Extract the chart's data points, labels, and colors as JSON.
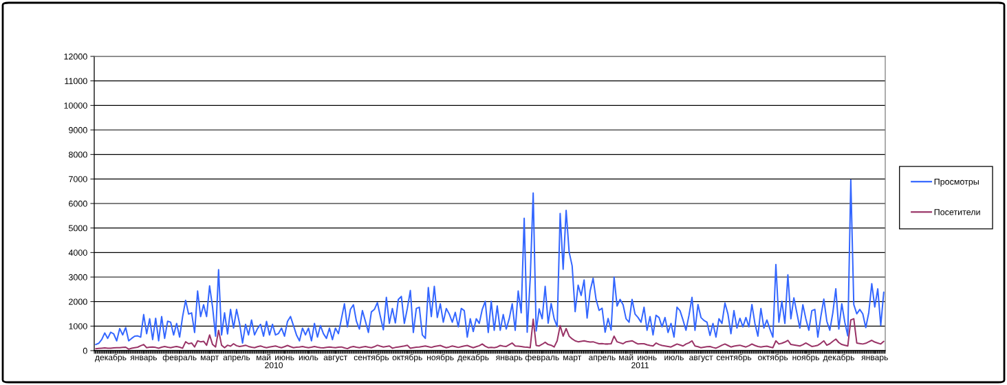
{
  "chart_data": {
    "type": "line",
    "categories": [
      null,
      null,
      null,
      null,
      null,
      "декабрь",
      null,
      null,
      null,
      null,
      null,
      null,
      null,
      null,
      null,
      null,
      "январь",
      null,
      null,
      null,
      null,
      null,
      null,
      null,
      null,
      null,
      null,
      null,
      "февраль",
      null,
      null,
      null,
      null,
      null,
      null,
      null,
      null,
      null,
      "март",
      null,
      null,
      null,
      null,
      null,
      null,
      null,
      null,
      "апрель",
      null,
      null,
      null,
      null,
      null,
      null,
      null,
      null,
      "май",
      null,
      null,
      null,
      null,
      null,
      null,
      "июнь",
      null,
      null,
      null,
      null,
      null,
      null,
      null,
      "июль",
      null,
      null,
      null,
      null,
      null,
      null,
      null,
      null,
      "август",
      null,
      null,
      null,
      null,
      null,
      null,
      null,
      null,
      null,
      null,
      null,
      "сентябрь",
      null,
      null,
      null,
      null,
      null,
      null,
      null,
      null,
      null,
      null,
      null,
      "октябрь",
      null,
      null,
      null,
      null,
      null,
      null,
      null,
      null,
      null,
      null,
      "ноябрь",
      null,
      null,
      null,
      null,
      null,
      null,
      null,
      null,
      null,
      null,
      "декабрь",
      null,
      null,
      null,
      null,
      null,
      null,
      null,
      null,
      null,
      null,
      null,
      "январь",
      null,
      null,
      null,
      null,
      null,
      null,
      null,
      null,
      null,
      null,
      "февраль",
      null,
      null,
      null,
      null,
      null,
      null,
      null,
      null,
      null,
      "март",
      null,
      null,
      null,
      null,
      null,
      null,
      null,
      null,
      null,
      "апрель",
      null,
      null,
      null,
      null,
      null,
      null,
      null,
      "май",
      null,
      null,
      null,
      null,
      null,
      null,
      "июнь",
      null,
      null,
      null,
      null,
      null,
      null,
      null,
      null,
      "июль",
      null,
      null,
      null,
      null,
      null,
      null,
      null,
      null,
      "август",
      null,
      null,
      null,
      null,
      null,
      null,
      null,
      null,
      null,
      null,
      "сентябрь",
      null,
      null,
      null,
      null,
      null,
      null,
      null,
      null,
      null,
      null,
      null,
      null,
      "октябрь",
      null,
      null,
      null,
      null,
      null,
      null,
      null,
      null,
      null,
      null,
      "ноябрь",
      null,
      null,
      null,
      null,
      null,
      null,
      null,
      null,
      null,
      null,
      "декабрь",
      null,
      null,
      null,
      null,
      null,
      null,
      null,
      null,
      null,
      null,
      null,
      "январь",
      null,
      null,
      null
    ],
    "series": [
      {
        "name": "Просмотры",
        "color": "#3366ff",
        "values": [
          250,
          300,
          450,
          720,
          500,
          750,
          680,
          400,
          900,
          640,
          940,
          400,
          500,
          590,
          600,
          550,
          1470,
          690,
          1300,
          450,
          1320,
          400,
          1390,
          500,
          1200,
          1160,
          640,
          1110,
          550,
          1390,
          2050,
          1490,
          1540,
          740,
          2430,
          1390,
          1870,
          1390,
          2640,
          1770,
          590,
          3300,
          640,
          1540,
          680,
          1680,
          920,
          1680,
          1110,
          310,
          1070,
          640,
          1250,
          640,
          900,
          1070,
          590,
          1190,
          640,
          1070,
          640,
          700,
          920,
          590,
          1190,
          1390,
          1020,
          640,
          400,
          920,
          640,
          920,
          400,
          1110,
          550,
          1020,
          690,
          500,
          920,
          450,
          920,
          690,
          1300,
          1910,
          970,
          1680,
          1870,
          1200,
          880,
          1630,
          1200,
          740,
          1580,
          1680,
          1960,
          1390,
          850,
          2170,
          1110,
          1720,
          1130,
          2090,
          2210,
          1110,
          1720,
          2450,
          740,
          1720,
          1770,
          640,
          500,
          2570,
          1390,
          2620,
          1350,
          1910,
          1160,
          1720,
          1490,
          1160,
          1560,
          970,
          1720,
          1630,
          550,
          1300,
          780,
          1300,
          1110,
          1680,
          2010,
          740,
          2010,
          830,
          1820,
          830,
          1470,
          880,
          1300,
          1910,
          830,
          2430,
          1540,
          5400,
          750,
          2900,
          6430,
          800,
          1700,
          1300,
          2620,
          1120,
          1920,
          1300,
          980,
          5590,
          3320,
          5720,
          4020,
          3460,
          1590,
          2670,
          2250,
          2880,
          1330,
          2430,
          2950,
          2080,
          1640,
          1730,
          750,
          1310,
          840,
          3000,
          1820,
          2090,
          1870,
          1300,
          1160,
          2090,
          1490,
          1350,
          1160,
          1770,
          830,
          1390,
          640,
          1440,
          1350,
          970,
          1350,
          740,
          1110,
          550,
          1770,
          1630,
          1250,
          830,
          1440,
          2170,
          830,
          1880,
          1350,
          1230,
          1160,
          620,
          1110,
          550,
          1300,
          1110,
          1940,
          1490,
          690,
          1630,
          920,
          1320,
          970,
          1350,
          970,
          1880,
          1110,
          590,
          1720,
          920,
          1250,
          880,
          550,
          3510,
          1160,
          2010,
          1110,
          3090,
          1300,
          2150,
          1540,
          920,
          1870,
          1300,
          830,
          1630,
          1680,
          550,
          1390,
          2100,
          1200,
          830,
          1540,
          2520,
          880,
          1910,
          1160,
          600,
          6960,
          1880,
          1500,
          1680,
          1500,
          940,
          1550,
          2730,
          1780,
          2520,
          1030,
          2380
        ]
      },
      {
        "name": "Посетители",
        "color": "#993366",
        "values": [
          80,
          90,
          100,
          110,
          100,
          100,
          110,
          120,
          120,
          130,
          140,
          60,
          100,
          120,
          140,
          200,
          250,
          120,
          140,
          150,
          130,
          100,
          140,
          170,
          140,
          120,
          150,
          170,
          140,
          100,
          360,
          280,
          310,
          150,
          400,
          360,
          380,
          220,
          640,
          250,
          150,
          830,
          220,
          120,
          220,
          180,
          280,
          200,
          170,
          190,
          220,
          170,
          140,
          120,
          160,
          190,
          150,
          120,
          150,
          170,
          190,
          150,
          120,
          160,
          210,
          160,
          120,
          140,
          150,
          170,
          140,
          120,
          140,
          170,
          140,
          120,
          110,
          130,
          150,
          130,
          120,
          140,
          150,
          110,
          80,
          140,
          170,
          140,
          120,
          150,
          170,
          140,
          120,
          160,
          220,
          180,
          150,
          170,
          190,
          100,
          130,
          150,
          170,
          190,
          220,
          100,
          120,
          140,
          150,
          170,
          190,
          160,
          130,
          170,
          190,
          210,
          160,
          120,
          150,
          190,
          160,
          130,
          160,
          190,
          210,
          160,
          120,
          160,
          200,
          270,
          180,
          120,
          130,
          120,
          150,
          210,
          180,
          170,
          240,
          310,
          190,
          180,
          170,
          150,
          140,
          120,
          1280,
          210,
          190,
          260,
          340,
          250,
          220,
          150,
          400,
          1020,
          590,
          900,
          590,
          480,
          400,
          360,
          380,
          400,
          370,
          350,
          360,
          320,
          280,
          290,
          270,
          270,
          280,
          590,
          360,
          320,
          280,
          360,
          380,
          400,
          330,
          270,
          280,
          280,
          240,
          210,
          190,
          310,
          250,
          210,
          190,
          170,
          150,
          210,
          270,
          230,
          190,
          270,
          320,
          400,
          190,
          160,
          120,
          140,
          160,
          170,
          130,
          100,
          160,
          220,
          270,
          210,
          150,
          180,
          200,
          220,
          180,
          150,
          200,
          270,
          210,
          170,
          150,
          170,
          180,
          150,
          120,
          400,
          270,
          300,
          350,
          420,
          250,
          230,
          210,
          190,
          240,
          310,
          240,
          170,
          190,
          220,
          300,
          400,
          220,
          280,
          380,
          470,
          330,
          250,
          220,
          190,
          1250,
          1300,
          310,
          290,
          270,
          300,
          360,
          420,
          350,
          310,
          270,
          380
        ]
      }
    ],
    "ylim": [
      0,
      12000
    ],
    "yticks": [
      0,
      1000,
      2000,
      3000,
      4000,
      5000,
      6000,
      7000,
      8000,
      9000,
      10000,
      11000,
      12000
    ],
    "grid": "y",
    "legend": "right",
    "annotations": [
      "2010",
      "2011"
    ]
  }
}
